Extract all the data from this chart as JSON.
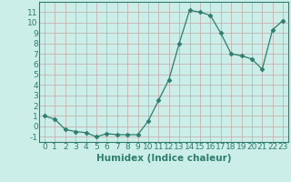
{
  "x": [
    0,
    1,
    2,
    3,
    4,
    5,
    6,
    7,
    8,
    9,
    10,
    11,
    12,
    13,
    14,
    15,
    16,
    17,
    18,
    19,
    20,
    21,
    22,
    23
  ],
  "y": [
    1.0,
    0.7,
    -0.3,
    -0.5,
    -0.6,
    -1.0,
    -0.7,
    -0.8,
    -0.8,
    -0.8,
    0.5,
    2.5,
    4.5,
    8.0,
    11.2,
    11.0,
    10.7,
    9.0,
    7.0,
    6.8,
    6.5,
    5.5,
    9.3,
    10.2
  ],
  "line_color": "#2e7d6e",
  "marker": "D",
  "marker_size": 2.5,
  "bg_color": "#cceee8",
  "grid_color": "#c4a8a8",
  "xlabel": "Humidex (Indice chaleur)",
  "xlim": [
    -0.5,
    23.5
  ],
  "ylim": [
    -1.5,
    12.0
  ],
  "xticks": [
    0,
    1,
    2,
    3,
    4,
    5,
    6,
    7,
    8,
    9,
    10,
    11,
    12,
    13,
    14,
    15,
    16,
    17,
    18,
    19,
    20,
    21,
    22,
    23
  ],
  "yticks": [
    -1,
    0,
    1,
    2,
    3,
    4,
    5,
    6,
    7,
    8,
    9,
    10,
    11
  ],
  "tick_fontsize": 6.5,
  "xlabel_fontsize": 7.5,
  "axis_color": "#2e7d6e",
  "spine_color": "#2e7d6e"
}
